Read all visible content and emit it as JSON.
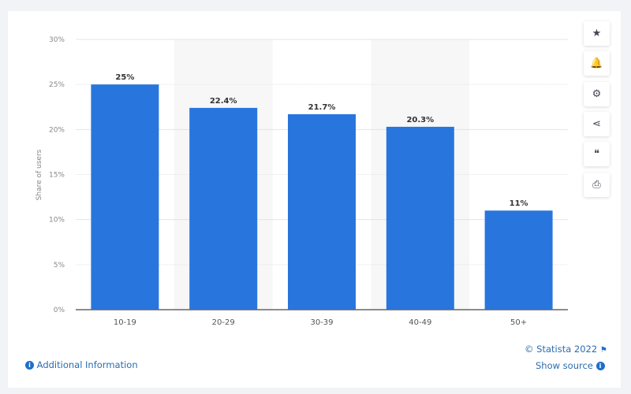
{
  "chart_data": {
    "type": "bar",
    "categories": [
      "10-19",
      "20-29",
      "30-39",
      "40-49",
      "50+"
    ],
    "values": [
      25,
      22.4,
      21.7,
      20.3,
      11
    ],
    "data_labels": [
      "25%",
      "22.4%",
      "21.7%",
      "20.3%",
      "11%"
    ],
    "ylabel": "Share of users",
    "ylim": [
      0,
      30
    ],
    "yticks": [
      "0%",
      "5%",
      "10%",
      "15%",
      "20%",
      "25%",
      "30%"
    ],
    "grid": true,
    "bar_color": "#2876dd"
  },
  "toolbar": {
    "icons": [
      "star-icon",
      "bell-icon",
      "gear-icon",
      "share-icon",
      "quote-icon",
      "print-icon"
    ],
    "glyphs": [
      "★",
      "🔔",
      "⚙",
      "⋖",
      "❝",
      "⎙"
    ]
  },
  "footer": {
    "additional_info": "Additional Information",
    "copyright": "© Statista 2022",
    "show_source": "Show source"
  }
}
